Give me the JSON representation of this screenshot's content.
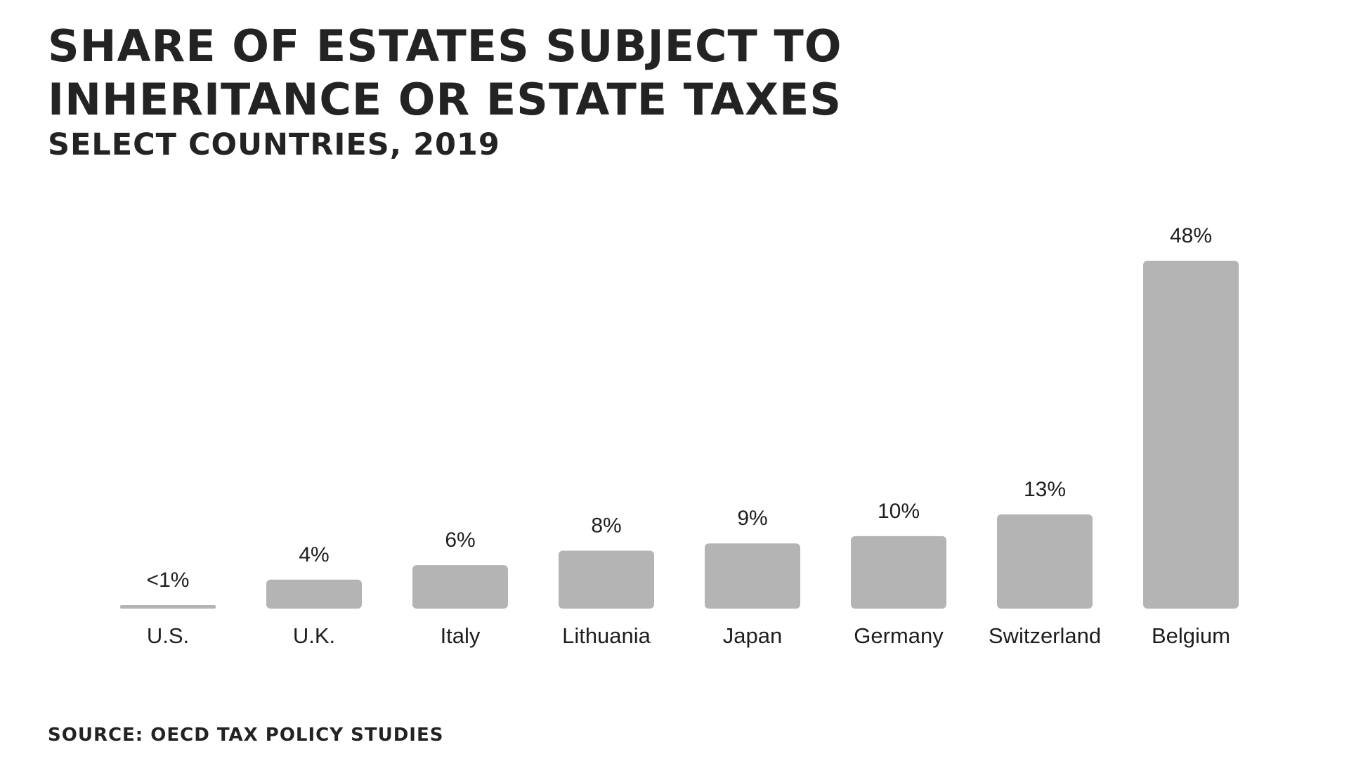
{
  "header": {
    "title": "Share of Estates Subject to Inheritance or Estate Taxes",
    "subtitle": "Select Countries, 2019"
  },
  "footer": {
    "source": "Source: OECD Tax Policy Studies"
  },
  "colors": {
    "bar": "#b5b4b4",
    "text": "#222222",
    "background": "#ffffff"
  },
  "chart_data": {
    "type": "bar",
    "title": "Share of Estates Subject to Inheritance or Estate Taxes",
    "subtitle": "Select Countries, 2019",
    "xlabel": "",
    "ylabel": "",
    "ylim": [
      0,
      48
    ],
    "grid": false,
    "legend": "none",
    "categories": [
      "U.S.",
      "U.K.",
      "Italy",
      "Lithuania",
      "Japan",
      "Germany",
      "Switzerland",
      "Belgium"
    ],
    "values": [
      0.2,
      4,
      6,
      8,
      9,
      10,
      13,
      48
    ],
    "value_labels": [
      "<1%",
      "4%",
      "6%",
      "8%",
      "9%",
      "10%",
      "13%",
      "48%"
    ]
  }
}
